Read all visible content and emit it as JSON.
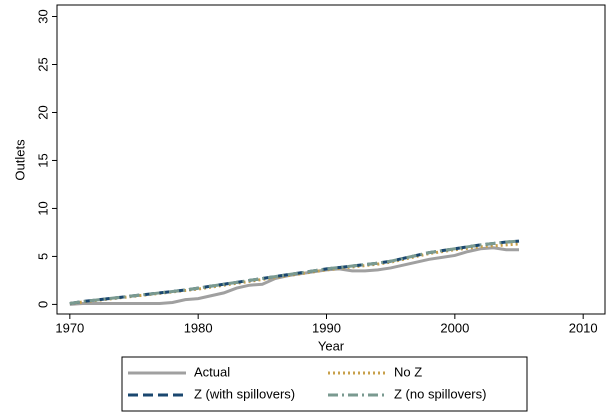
{
  "chart_data": {
    "type": "line",
    "x_label": "Year",
    "y_label": "Outlets",
    "x": [
      1970,
      1971,
      1972,
      1973,
      1974,
      1975,
      1976,
      1977,
      1978,
      1979,
      1980,
      1981,
      1982,
      1983,
      1984,
      1985,
      1986,
      1987,
      1988,
      1989,
      1990,
      1991,
      1992,
      1993,
      1994,
      1995,
      1996,
      1997,
      1998,
      1999,
      2000,
      2001,
      2002,
      2003,
      2004,
      2005
    ],
    "series": [
      {
        "name": "Actual",
        "color": "#a0a0a0",
        "dash": "solid",
        "values": [
          0,
          0.1,
          0.1,
          0.1,
          0.1,
          0.1,
          0.1,
          0.1,
          0.2,
          0.5,
          0.6,
          0.9,
          1.2,
          1.7,
          2.0,
          2.1,
          2.7,
          3.0,
          3.2,
          3.4,
          3.6,
          3.7,
          3.5,
          3.5,
          3.6,
          3.8,
          4.1,
          4.4,
          4.7,
          4.9,
          5.1,
          5.5,
          5.8,
          5.9,
          5.7,
          5.7
        ]
      },
      {
        "name": "No Z",
        "color": "#c8a04a",
        "dash": "dot",
        "values": [
          0.1,
          0.25,
          0.4,
          0.55,
          0.7,
          0.85,
          1.0,
          1.15,
          1.3,
          1.45,
          1.6,
          1.8,
          2.0,
          2.2,
          2.4,
          2.6,
          2.8,
          3.0,
          3.2,
          3.4,
          3.6,
          3.75,
          3.9,
          4.05,
          4.2,
          4.4,
          4.7,
          5.0,
          5.3,
          5.5,
          5.7,
          5.85,
          6.0,
          6.1,
          6.2,
          6.3
        ]
      },
      {
        "name": "Z (with spillovers)",
        "color": "#1a476f",
        "dash": "dash",
        "values": [
          0.1,
          0.3,
          0.45,
          0.6,
          0.75,
          0.9,
          1.05,
          1.2,
          1.35,
          1.5,
          1.7,
          1.9,
          2.1,
          2.3,
          2.5,
          2.7,
          2.9,
          3.1,
          3.3,
          3.5,
          3.7,
          3.85,
          4.0,
          4.15,
          4.3,
          4.5,
          4.8,
          5.1,
          5.4,
          5.6,
          5.8,
          6.0,
          6.2,
          6.35,
          6.5,
          6.6
        ]
      },
      {
        "name": "Z (no spillovers)",
        "color": "#7a9a90",
        "dash": "dashdot",
        "values": [
          0.1,
          0.3,
          0.45,
          0.6,
          0.75,
          0.9,
          1.05,
          1.2,
          1.35,
          1.5,
          1.7,
          1.9,
          2.1,
          2.3,
          2.5,
          2.7,
          2.9,
          3.1,
          3.3,
          3.5,
          3.7,
          3.85,
          4.0,
          4.15,
          4.3,
          4.5,
          4.8,
          5.1,
          5.4,
          5.6,
          5.8,
          6.0,
          6.2,
          6.35,
          6.5,
          6.6
        ]
      }
    ],
    "xlim": [
      1969,
      2011.7
    ],
    "ylim": [
      -1,
      31.2
    ],
    "xticks": [
      1970,
      1980,
      1990,
      2000,
      2010
    ],
    "yticks": [
      0,
      5,
      10,
      15,
      20,
      25,
      30
    ],
    "legend": "bottom"
  }
}
